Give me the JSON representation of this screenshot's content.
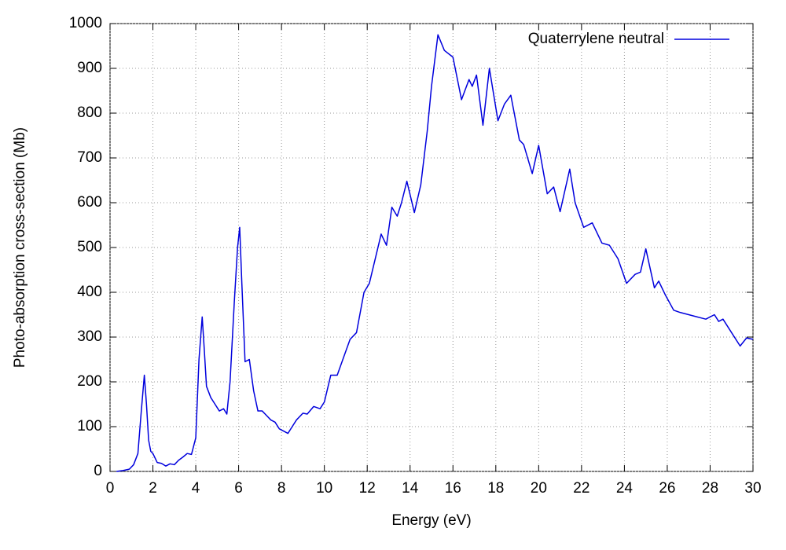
{
  "chart_data": {
    "type": "line",
    "xlabel": "Energy (eV)",
    "ylabel": "Photo-absorption cross-section (Mb)",
    "xlim": [
      0,
      30
    ],
    "xticks": [
      0,
      2,
      4,
      6,
      8,
      10,
      12,
      14,
      16,
      18,
      20,
      22,
      24,
      26,
      28,
      30
    ],
    "ylim": [
      0,
      1000
    ],
    "yticks": [
      0,
      100,
      200,
      300,
      400,
      500,
      600,
      700,
      800,
      900,
      1000
    ],
    "grid": true,
    "legend": "upper right",
    "x": [
      0.3,
      0.6,
      0.9,
      1.1,
      1.3,
      1.45,
      1.6,
      1.7,
      1.8,
      1.9,
      2.0,
      2.2,
      2.4,
      2.6,
      2.8,
      3.0,
      3.2,
      3.4,
      3.6,
      3.8,
      4.0,
      4.15,
      4.3,
      4.4,
      4.5,
      4.7,
      4.9,
      5.1,
      5.3,
      5.45,
      5.6,
      5.8,
      5.95,
      6.05,
      6.15,
      6.3,
      6.5,
      6.7,
      6.9,
      7.1,
      7.3,
      7.5,
      7.7,
      7.9,
      8.1,
      8.3,
      8.5,
      8.7,
      9.0,
      9.2,
      9.5,
      9.8,
      10.0,
      10.3,
      10.6,
      10.9,
      11.2,
      11.5,
      11.85,
      12.1,
      12.4,
      12.65,
      12.9,
      13.15,
      13.4,
      13.6,
      13.85,
      14.2,
      14.5,
      14.8,
      15.0,
      15.3,
      15.6,
      16.0,
      16.4,
      16.75,
      16.9,
      17.1,
      17.4,
      17.7,
      18.1,
      18.4,
      18.7,
      19.1,
      19.3,
      19.7,
      20.0,
      20.4,
      20.7,
      21.0,
      21.45,
      21.7,
      22.1,
      22.5,
      22.95,
      23.3,
      23.7,
      24.1,
      24.5,
      24.75,
      25.0,
      25.4,
      25.6,
      25.9,
      26.3,
      26.6,
      27.0,
      27.4,
      27.8,
      28.2,
      28.4,
      28.6,
      29.0,
      29.4,
      29.7,
      30.0
    ],
    "series": [
      {
        "name": "Quaterrylene neutral",
        "color": "#0000dd",
        "values": [
          0,
          2,
          5,
          15,
          40,
          130,
          215,
          150,
          70,
          45,
          40,
          20,
          18,
          12,
          17,
          15,
          25,
          32,
          40,
          38,
          75,
          250,
          345,
          270,
          190,
          165,
          150,
          135,
          140,
          128,
          200,
          380,
          500,
          545,
          420,
          245,
          250,
          180,
          135,
          135,
          125,
          115,
          110,
          95,
          90,
          85,
          100,
          115,
          130,
          128,
          145,
          140,
          155,
          215,
          215,
          255,
          295,
          310,
          400,
          420,
          480,
          530,
          505,
          590,
          570,
          600,
          648,
          578,
          640,
          760,
          860,
          975,
          940,
          925,
          830,
          875,
          860,
          885,
          773,
          900,
          783,
          820,
          840,
          740,
          730,
          665,
          728,
          620,
          635,
          580,
          675,
          600,
          545,
          555,
          510,
          505,
          475,
          420,
          440,
          445,
          497,
          410,
          425,
          395,
          360,
          355,
          350,
          345,
          340,
          350,
          335,
          340,
          310,
          280,
          298,
          295
        ]
      }
    ]
  }
}
